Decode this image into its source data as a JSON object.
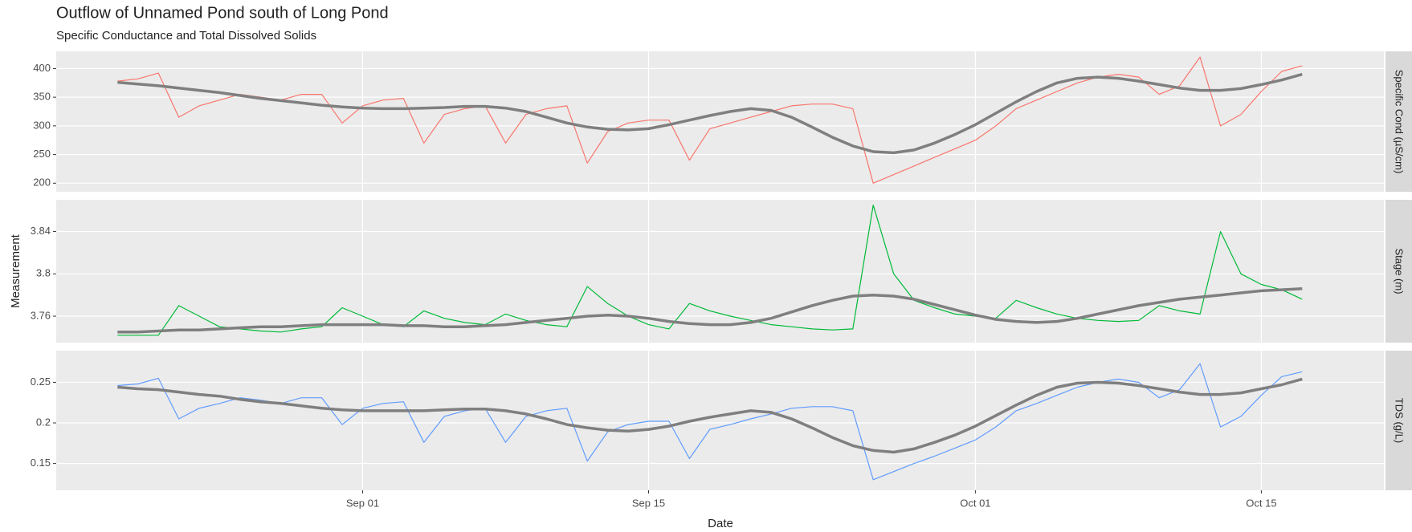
{
  "figure": {
    "title": "Outflow of Unnamed Pond south of Long Pond",
    "subtitle": "Specific Conductance and Total Dissolved Solids",
    "xlabel": "Date",
    "ylabel": "Measurement",
    "xlim": [
      "Aug 17",
      "Oct 21"
    ],
    "xticks": [
      "Sep 01",
      "Sep 15",
      "Oct 01",
      "Oct 15"
    ],
    "x": [
      "Aug 20",
      "Aug 21",
      "Aug 22",
      "Aug 23",
      "Aug 24",
      "Aug 25",
      "Aug 26",
      "Aug 27",
      "Aug 28",
      "Aug 29",
      "Aug 30",
      "Aug 31",
      "Sep 01",
      "Sep 02",
      "Sep 03",
      "Sep 04",
      "Sep 05",
      "Sep 06",
      "Sep 07",
      "Sep 08",
      "Sep 09",
      "Sep 10",
      "Sep 11",
      "Sep 12",
      "Sep 13",
      "Sep 14",
      "Sep 15",
      "Sep 16",
      "Sep 17",
      "Sep 18",
      "Sep 19",
      "Sep 20",
      "Sep 21",
      "Sep 22",
      "Sep 23",
      "Sep 24",
      "Sep 25",
      "Sep 26",
      "Sep 27",
      "Sep 28",
      "Sep 29",
      "Sep 30",
      "Oct 01",
      "Oct 02",
      "Oct 03",
      "Oct 04",
      "Oct 05",
      "Oct 06",
      "Oct 07",
      "Oct 08",
      "Oct 09",
      "Oct 10",
      "Oct 11",
      "Oct 12",
      "Oct 13",
      "Oct 14",
      "Oct 15",
      "Oct 16",
      "Oct 17"
    ]
  },
  "chart_data": [
    {
      "type": "line",
      "strip": "Specific Cond (µS/cm)",
      "ylim": [
        185,
        430
      ],
      "yticks": [
        200,
        250,
        300,
        350,
        400
      ],
      "grid": true,
      "series": [
        {
          "color": "#f8766d",
          "values": [
            378,
            382,
            392,
            315,
            335,
            345,
            355,
            350,
            345,
            355,
            355,
            305,
            335,
            345,
            348,
            270,
            320,
            330,
            335,
            270,
            320,
            330,
            335,
            235,
            290,
            305,
            310,
            310,
            240,
            295,
            305,
            315,
            325,
            335,
            338,
            338,
            330,
            200,
            215,
            230,
            245,
            260,
            275,
            300,
            330,
            345,
            360,
            375,
            385,
            390,
            385,
            355,
            370,
            420,
            300,
            320,
            360,
            395,
            405
          ]
        },
        {
          "color": "#7f7f7f",
          "values": [
            376,
            373,
            370,
            366,
            362,
            358,
            353,
            348,
            344,
            340,
            336,
            333,
            331,
            330,
            330,
            331,
            332,
            334,
            334,
            331,
            325,
            315,
            305,
            298,
            294,
            293,
            295,
            302,
            310,
            318,
            325,
            330,
            327,
            315,
            298,
            280,
            265,
            255,
            253,
            258,
            270,
            285,
            302,
            322,
            342,
            360,
            375,
            383,
            385,
            383,
            378,
            372,
            366,
            362,
            362,
            365,
            372,
            380,
            390
          ]
        }
      ]
    },
    {
      "type": "line",
      "strip": "Stage (m)",
      "ylim": [
        3.735,
        3.87
      ],
      "yticks": [
        3.76,
        3.8,
        3.84
      ],
      "grid": true,
      "series": [
        {
          "color": "#00ba38",
          "values": [
            3.742,
            3.742,
            3.742,
            3.77,
            3.76,
            3.75,
            3.748,
            3.746,
            3.745,
            3.748,
            3.75,
            3.768,
            3.76,
            3.752,
            3.75,
            3.765,
            3.758,
            3.754,
            3.752,
            3.762,
            3.756,
            3.752,
            3.75,
            3.788,
            3.772,
            3.76,
            3.752,
            3.748,
            3.772,
            3.765,
            3.76,
            3.756,
            3.752,
            3.75,
            3.748,
            3.747,
            3.748,
            3.865,
            3.8,
            3.775,
            3.768,
            3.762,
            3.76,
            3.758,
            3.775,
            3.768,
            3.762,
            3.758,
            3.756,
            3.755,
            3.756,
            3.77,
            3.765,
            3.762,
            3.84,
            3.8,
            3.79,
            3.785,
            3.776
          ]
        },
        {
          "color": "#7f7f7f",
          "values": [
            3.745,
            3.745,
            3.746,
            3.747,
            3.747,
            3.748,
            3.749,
            3.75,
            3.75,
            3.751,
            3.752,
            3.752,
            3.752,
            3.752,
            3.751,
            3.751,
            3.75,
            3.75,
            3.751,
            3.752,
            3.754,
            3.756,
            3.758,
            3.76,
            3.761,
            3.76,
            3.758,
            3.755,
            3.753,
            3.752,
            3.752,
            3.754,
            3.758,
            3.764,
            3.77,
            3.775,
            3.779,
            3.78,
            3.779,
            3.776,
            3.771,
            3.766,
            3.761,
            3.757,
            3.755,
            3.754,
            3.755,
            3.758,
            3.762,
            3.766,
            3.77,
            3.773,
            3.776,
            3.778,
            3.78,
            3.782,
            3.784,
            3.785,
            3.786
          ]
        }
      ]
    },
    {
      "type": "line",
      "strip": "TDS (g/L)",
      "ylim": [
        0.117,
        0.289
      ],
      "yticks": [
        0.15,
        0.2,
        0.25
      ],
      "grid": true,
      "series": [
        {
          "color": "#619cff",
          "values": [
            0.246,
            0.248,
            0.255,
            0.205,
            0.218,
            0.224,
            0.231,
            0.228,
            0.224,
            0.231,
            0.231,
            0.198,
            0.218,
            0.224,
            0.226,
            0.176,
            0.208,
            0.215,
            0.218,
            0.176,
            0.208,
            0.215,
            0.218,
            0.153,
            0.189,
            0.198,
            0.202,
            0.202,
            0.156,
            0.192,
            0.198,
            0.205,
            0.211,
            0.218,
            0.22,
            0.22,
            0.215,
            0.13,
            0.14,
            0.15,
            0.159,
            0.169,
            0.179,
            0.195,
            0.215,
            0.224,
            0.234,
            0.244,
            0.25,
            0.254,
            0.25,
            0.231,
            0.241,
            0.273,
            0.195,
            0.208,
            0.234,
            0.257,
            0.263
          ]
        },
        {
          "color": "#7f7f7f",
          "values": [
            0.244,
            0.242,
            0.241,
            0.238,
            0.235,
            0.233,
            0.229,
            0.226,
            0.224,
            0.221,
            0.218,
            0.216,
            0.215,
            0.215,
            0.215,
            0.215,
            0.216,
            0.217,
            0.217,
            0.215,
            0.211,
            0.205,
            0.198,
            0.194,
            0.191,
            0.19,
            0.192,
            0.196,
            0.202,
            0.207,
            0.211,
            0.215,
            0.213,
            0.205,
            0.194,
            0.182,
            0.172,
            0.166,
            0.164,
            0.168,
            0.176,
            0.185,
            0.196,
            0.209,
            0.222,
            0.234,
            0.244,
            0.249,
            0.25,
            0.249,
            0.246,
            0.242,
            0.238,
            0.235,
            0.235,
            0.237,
            0.242,
            0.247,
            0.254
          ]
        }
      ]
    }
  ]
}
